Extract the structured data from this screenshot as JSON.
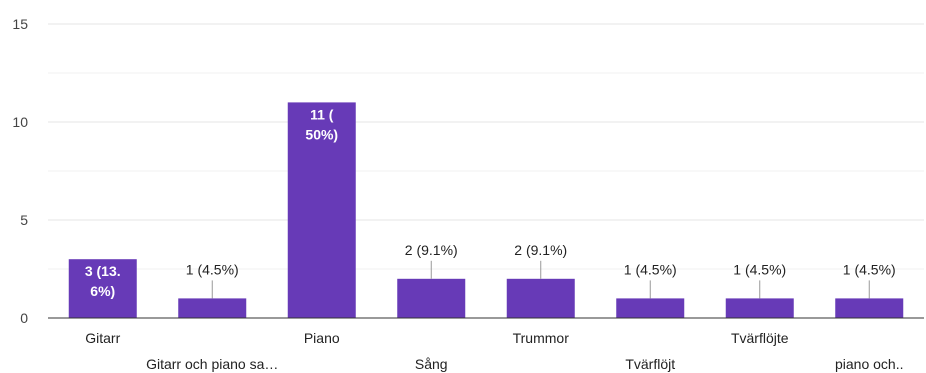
{
  "chart_data": {
    "type": "bar",
    "categories": [
      "Gitarr",
      "Gitarr och piano sa…",
      "Piano",
      "Sång",
      "Trummor",
      "Tvärflöjt",
      "Tvärflöjte",
      "piano och.."
    ],
    "values": [
      3,
      1,
      11,
      2,
      2,
      1,
      1,
      1
    ],
    "data_labels": [
      [
        "3 (13.",
        "6%)"
      ],
      [
        "1 (4.5%)"
      ],
      [
        "11 (",
        "50%)"
      ],
      [
        "2 (9.1%)"
      ],
      [
        "2 (9.1%)"
      ],
      [
        "1 (4.5%)"
      ],
      [
        "1 (4.5%)"
      ],
      [
        "1 (4.5%)"
      ]
    ],
    "label_inside": [
      true,
      false,
      true,
      false,
      false,
      false,
      false,
      false
    ],
    "yticks": [
      0,
      5,
      10,
      15
    ],
    "ylim": [
      0,
      15
    ],
    "grid": true,
    "colors": {
      "bar": "#673ab7",
      "label_outside": "#222222",
      "label_inside": "#ffffff",
      "grid": "#e6e6e6",
      "axis": "#333333",
      "leader": "#999999"
    }
  }
}
